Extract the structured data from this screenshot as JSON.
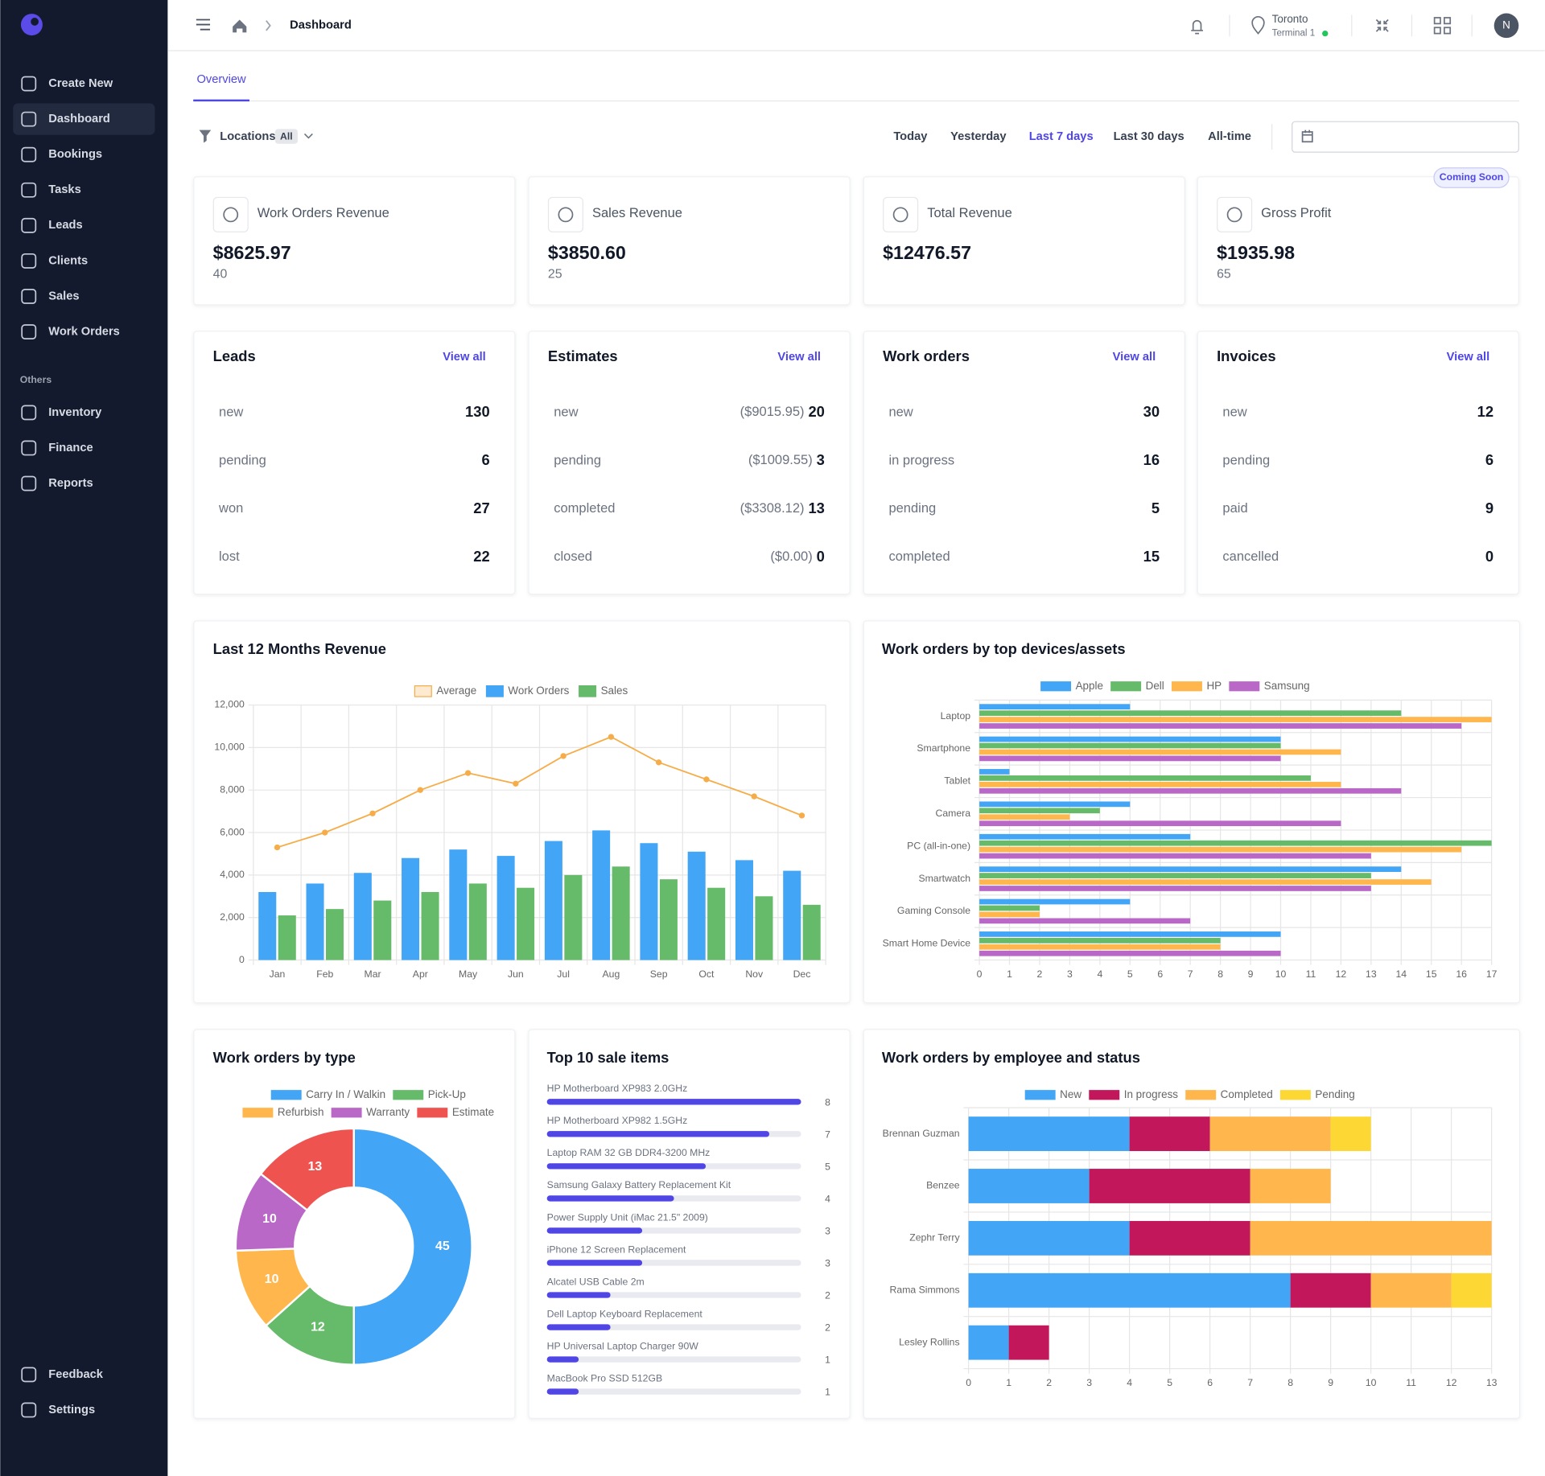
{
  "sidebar": {
    "main": [
      "Create New",
      "Dashboard",
      "Bookings",
      "Tasks",
      "Leads",
      "Clients",
      "Sales",
      "Work Orders"
    ],
    "active": 1,
    "section": "Others",
    "others": [
      "Inventory",
      "Finance",
      "Reports"
    ],
    "footer": [
      "Feedback",
      "Settings"
    ]
  },
  "topbar": {
    "breadcrumb": "Dashboard",
    "location": "Toronto",
    "terminal": "Terminal 1",
    "avatar": "N"
  },
  "tabs": [
    "Overview"
  ],
  "filters": {
    "label": "Locations",
    "badge": "All",
    "ranges": [
      "Today",
      "Yesterday",
      "Last 7 days",
      "Last 30 days",
      "All-time"
    ],
    "active_range": 2
  },
  "kpis": [
    {
      "title": "Work Orders Revenue",
      "value": "$8625.97",
      "count": 40
    },
    {
      "title": "Sales Revenue",
      "value": "$3850.60",
      "count": 25
    },
    {
      "title": "Total Revenue",
      "value": "$12476.57"
    },
    {
      "title": "Gross Profit",
      "value": "$1935.98",
      "count": 65,
      "badge": "Coming Soon"
    }
  ],
  "summaries": [
    {
      "title": "Leads",
      "link": "View all",
      "rows": [
        {
          "label": "new",
          "count": 130
        },
        {
          "label": "pending",
          "count": 6
        },
        {
          "label": "won",
          "count": 27
        },
        {
          "label": "lost",
          "count": 22
        }
      ]
    },
    {
      "title": "Estimates",
      "link": "View all",
      "rows": [
        {
          "label": "new",
          "amount": "($9015.95)",
          "count": 20
        },
        {
          "label": "pending",
          "amount": "($1009.55)",
          "count": 3
        },
        {
          "label": "completed",
          "amount": "($3308.12)",
          "count": 13
        },
        {
          "label": "closed",
          "amount": "($0.00)",
          "count": 0
        }
      ]
    },
    {
      "title": "Work orders",
      "link": "View all",
      "rows": [
        {
          "label": "new",
          "count": 30
        },
        {
          "label": "in progress",
          "count": 16
        },
        {
          "label": "pending",
          "count": 5
        },
        {
          "label": "completed",
          "count": 15
        }
      ]
    },
    {
      "title": "Invoices",
      "link": "View all",
      "rows": [
        {
          "label": "new",
          "count": 12
        },
        {
          "label": "pending",
          "count": 6
        },
        {
          "label": "paid",
          "count": 9
        },
        {
          "label": "cancelled",
          "count": 0
        }
      ]
    }
  ],
  "chart_data": [
    {
      "type": "bar",
      "title": "Last 12 Months Revenue",
      "categories": [
        "Jan",
        "Feb",
        "Mar",
        "Apr",
        "May",
        "Jun",
        "Jul",
        "Aug",
        "Sep",
        "Oct",
        "Nov",
        "Dec"
      ],
      "series": [
        {
          "name": "Average",
          "type": "line",
          "color": "#f6ad49",
          "values": [
            5300,
            6000,
            6900,
            8000,
            8800,
            8300,
            9600,
            10500,
            9300,
            8500,
            7700,
            6800
          ]
        },
        {
          "name": "Work Orders",
          "color": "#42a5f5",
          "values": [
            3200,
            3600,
            4100,
            4800,
            5200,
            4900,
            5600,
            6100,
            5500,
            5100,
            4700,
            4200
          ]
        },
        {
          "name": "Sales",
          "color": "#66bb6a",
          "values": [
            2100,
            2400,
            2800,
            3200,
            3600,
            3400,
            4000,
            4400,
            3800,
            3400,
            3000,
            2600
          ]
        }
      ],
      "ylim": [
        0,
        12000
      ],
      "yticks": [
        0,
        {
          "value": 2000,
          "label": "2,000"
        },
        {
          "value": 4000,
          "label": "4,000"
        },
        {
          "value": 6000,
          "label": "6,000"
        },
        {
          "value": 8000,
          "label": "8,000"
        },
        {
          "value": 10000,
          "label": "10,000"
        },
        {
          "value": 12000,
          "label": "12,000"
        }
      ],
      "grid": true
    },
    {
      "type": "bar",
      "orientation": "horizontal",
      "title": "Work orders by top devices/assets",
      "categories": [
        "Laptop",
        "Smartphone",
        "Tablet",
        "Camera",
        "PC (all-in-one)",
        "Smartwatch",
        "Gaming Console",
        "Smart Home Device"
      ],
      "series": [
        {
          "name": "Apple",
          "color": "#42a5f5",
          "values": [
            5,
            10,
            1,
            5,
            7,
            14,
            5,
            10
          ]
        },
        {
          "name": "Dell",
          "color": "#66bb6a",
          "values": [
            14,
            10,
            11,
            4,
            17,
            13,
            2,
            8
          ]
        },
        {
          "name": "HP",
          "color": "#ffb74d",
          "values": [
            17,
            12,
            12,
            3,
            16,
            15,
            2,
            8
          ]
        },
        {
          "name": "Samsung",
          "color": "#ba68c8",
          "values": [
            16,
            10,
            14,
            12,
            13,
            13,
            7,
            10
          ]
        }
      ],
      "xlim": [
        0,
        17
      ],
      "xticks": [
        0,
        1,
        2,
        3,
        4,
        5,
        6,
        7,
        8,
        9,
        10,
        11,
        12,
        13,
        14,
        15,
        16,
        17
      ],
      "grid": true
    },
    {
      "type": "pie",
      "donut": true,
      "title": "Work orders by type",
      "categories": [
        "Carry In / Walkin",
        "Pick-Up",
        "Refurbish",
        "Warranty",
        "Estimate"
      ],
      "values": [
        45,
        12,
        10,
        10,
        13
      ],
      "colors": [
        "#42a5f5",
        "#66bb6a",
        "#ffb74d",
        "#ba68c8",
        "#ef5350"
      ]
    },
    {
      "type": "bar",
      "orientation": "horizontal",
      "title": "Top 10 sale items",
      "categories": [
        "HP Motherboard XP983 2.0GHz",
        "HP Motherboard XP982 1.5GHz",
        "Laptop RAM 32 GB DDR4-3200 MHz",
        "Samsung Galaxy Battery Replacement Kit",
        "Power Supply Unit (iMac 21.5\" 2009)",
        "iPhone 12 Screen Replacement",
        "Alcatel USB Cable 2m",
        "Dell Laptop Keyboard Replacement",
        "HP Universal Laptop Charger 90W",
        "MacBook Pro SSD 512GB"
      ],
      "values": [
        8,
        7,
        5,
        4,
        3,
        3,
        2,
        2,
        1,
        1
      ],
      "color": "#4f46e5",
      "xlim": [
        0,
        8
      ]
    },
    {
      "type": "bar",
      "orientation": "horizontal",
      "stacked": true,
      "title": "Work orders by employee and status",
      "categories": [
        "Brennan Guzman",
        "Benzee",
        "Zephr Terry",
        "Rama Simmons",
        "Lesley Rollins"
      ],
      "series": [
        {
          "name": "New",
          "color": "#42a5f5",
          "values": [
            4,
            3,
            4,
            8,
            1
          ]
        },
        {
          "name": "In progress",
          "color": "#c2185b",
          "values": [
            2,
            4,
            3,
            2,
            1
          ]
        },
        {
          "name": "Completed",
          "color": "#ffb74d",
          "values": [
            3,
            2,
            6,
            2,
            0
          ]
        },
        {
          "name": "Pending",
          "color": "#fdd835",
          "values": [
            1,
            0,
            0,
            1,
            0
          ]
        }
      ],
      "xlim": [
        0,
        13
      ],
      "xticks": [
        0,
        1,
        2,
        3,
        4,
        5,
        6,
        7,
        8,
        9,
        10,
        11,
        12,
        13
      ],
      "grid": true
    }
  ]
}
